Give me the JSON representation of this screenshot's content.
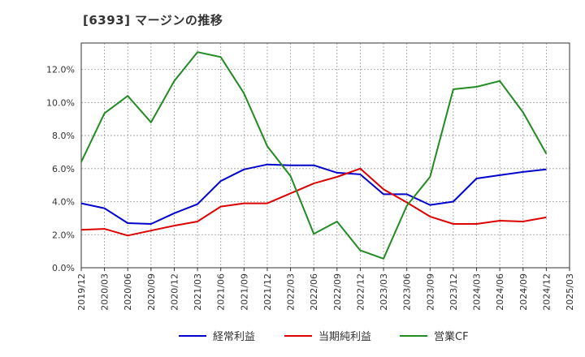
{
  "chart_data": {
    "type": "line",
    "title": "[6393]  マージンの推移",
    "x": [
      "2019/12",
      "2020/03",
      "2020/06",
      "2020/09",
      "2020/12",
      "2021/03",
      "2021/06",
      "2021/09",
      "2021/12",
      "2022/03",
      "2022/06",
      "2022/09",
      "2022/12",
      "2023/03",
      "2023/06",
      "2023/09",
      "2023/12",
      "2024/03",
      "2024/06",
      "2024/09",
      "2024/12",
      "2025/03"
    ],
    "y_ticks": [
      "0.0%",
      "2.0%",
      "4.0%",
      "6.0%",
      "8.0%",
      "10.0%",
      "12.0%"
    ],
    "ylim": [
      0,
      13.6
    ],
    "grid": true,
    "legend": "bottom",
    "series": [
      {
        "name": "経常利益",
        "color": "#0000cc",
        "values": [
          3.9,
          3.6,
          2.7,
          2.65,
          3.3,
          3.85,
          5.25,
          5.95,
          6.25,
          6.2,
          6.2,
          5.75,
          5.65,
          4.45,
          4.45,
          3.8,
          4.0,
          5.4,
          5.6,
          5.8,
          5.95,
          null
        ]
      },
      {
        "name": "当期純利益",
        "color": "#dd0000",
        "values": [
          2.3,
          2.35,
          1.95,
          2.25,
          2.55,
          2.8,
          3.7,
          3.9,
          3.9,
          4.5,
          5.1,
          5.5,
          6.0,
          4.75,
          3.95,
          3.1,
          2.65,
          2.65,
          2.85,
          2.8,
          3.05,
          null
        ]
      },
      {
        "name": "営業CF",
        "color": "#228b22",
        "values": [
          6.4,
          9.35,
          10.4,
          8.8,
          11.3,
          13.05,
          12.75,
          10.55,
          7.35,
          5.55,
          2.05,
          2.8,
          1.05,
          0.55,
          3.75,
          5.5,
          10.8,
          10.95,
          11.3,
          9.4,
          6.9,
          null
        ]
      }
    ]
  }
}
